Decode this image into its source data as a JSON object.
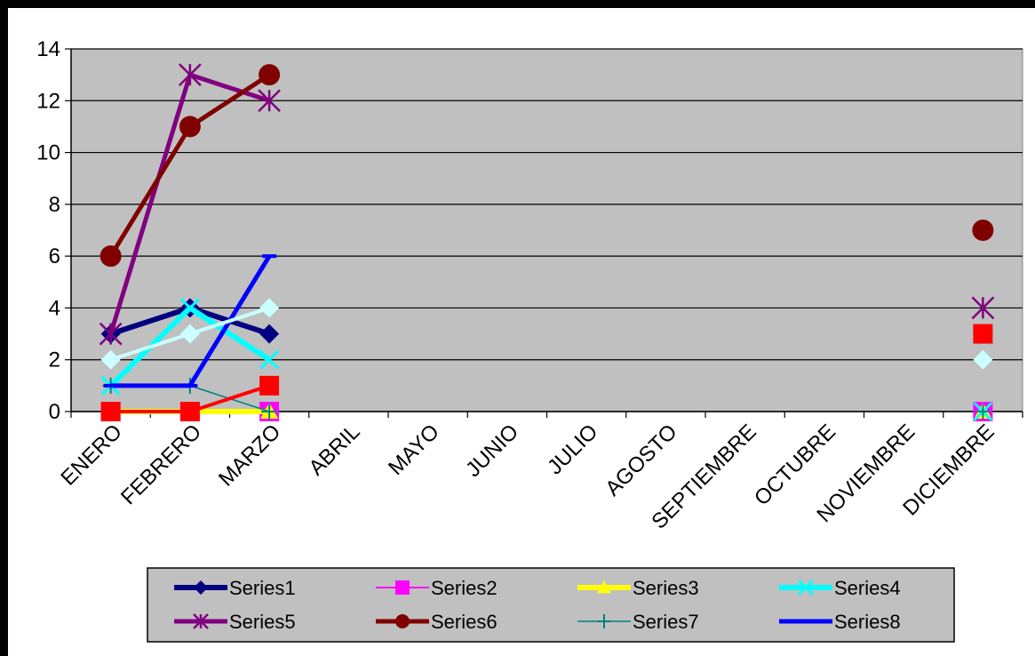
{
  "chart_data": {
    "type": "line",
    "title": "",
    "xlabel": "",
    "ylabel": "",
    "ylim": [
      0,
      14
    ],
    "yticks": [
      0,
      2,
      4,
      6,
      8,
      10,
      12,
      14
    ],
    "grid": "horizontal",
    "legend_position": "bottom",
    "plot_background": "#c0c0c0",
    "categories": [
      "ENERO",
      "FEBRERO",
      "MARZO",
      "ABRIL",
      "MAYO",
      "JUNIO",
      "JULIO",
      "AGOSTO",
      "SEPTIEMBRE",
      "OCTUBRE",
      "NOVIEMBRE",
      "DICIEMBRE"
    ],
    "series": [
      {
        "name": "Series1",
        "color": "#000080",
        "marker": "diamond",
        "values": [
          3,
          4,
          3,
          null,
          null,
          null,
          null,
          null,
          null,
          null,
          null,
          0
        ]
      },
      {
        "name": "Series2",
        "color": "#ff00ff",
        "marker": "square",
        "values": [
          0,
          0,
          0,
          null,
          null,
          null,
          null,
          null,
          null,
          null,
          null,
          0
        ]
      },
      {
        "name": "Series3",
        "color": "#ffff00",
        "marker": "triangle",
        "values": [
          0,
          0,
          0,
          null,
          null,
          null,
          null,
          null,
          null,
          null,
          null,
          0
        ]
      },
      {
        "name": "Series4",
        "color": "#00ffff",
        "marker": "x",
        "values": [
          1,
          4,
          2,
          null,
          null,
          null,
          null,
          null,
          null,
          null,
          null,
          0
        ]
      },
      {
        "name": "Series5",
        "color": "#800080",
        "marker": "star",
        "values": [
          3,
          13,
          12,
          null,
          null,
          null,
          null,
          null,
          null,
          null,
          null,
          4
        ]
      },
      {
        "name": "Series6",
        "color": "#800000",
        "marker": "circle",
        "values": [
          6,
          11,
          13,
          null,
          null,
          null,
          null,
          null,
          null,
          null,
          null,
          7
        ]
      },
      {
        "name": "Series7",
        "color": "#008080",
        "marker": "plus",
        "values": [
          1,
          1,
          0,
          null,
          null,
          null,
          null,
          null,
          null,
          null,
          null,
          0
        ]
      },
      {
        "name": "Series8",
        "color": "#0000ff",
        "marker": "bar",
        "values": [
          1,
          1,
          6,
          null,
          null,
          null,
          null,
          null,
          null,
          null,
          null,
          null
        ]
      },
      {
        "name": "",
        "color": "#ff0000",
        "marker": "square",
        "values": [
          0,
          0,
          1,
          null,
          null,
          null,
          null,
          null,
          null,
          null,
          null,
          3
        ]
      },
      {
        "name": "",
        "color": "#ccffff",
        "marker": "diamond",
        "values": [
          2,
          3,
          4,
          null,
          null,
          null,
          null,
          null,
          null,
          null,
          null,
          2
        ]
      }
    ]
  }
}
